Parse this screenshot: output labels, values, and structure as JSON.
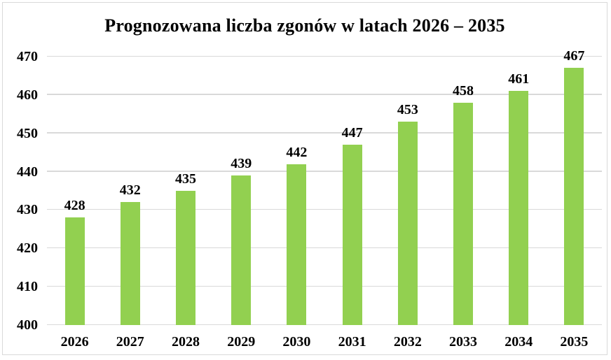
{
  "chart_data": {
    "type": "bar",
    "title": "Prognozowana liczba zgonów w latach 2026 – 2035",
    "categories": [
      "2026",
      "2027",
      "2028",
      "2029",
      "2030",
      "2031",
      "2032",
      "2033",
      "2034",
      "2035"
    ],
    "values": [
      428,
      432,
      435,
      439,
      442,
      447,
      453,
      458,
      461,
      467
    ],
    "xlabel": "",
    "ylabel": "",
    "ylim": [
      400,
      470
    ],
    "yticks": [
      400,
      410,
      420,
      430,
      440,
      450,
      460,
      470
    ],
    "grid": true,
    "legend_position": "none",
    "data_labels_shown": true,
    "colors": {
      "bar": "#92d050",
      "gridline": "#d9d9d9",
      "frame_border": "#d9d9d9",
      "text": "#000000",
      "background": "#ffffff"
    }
  }
}
